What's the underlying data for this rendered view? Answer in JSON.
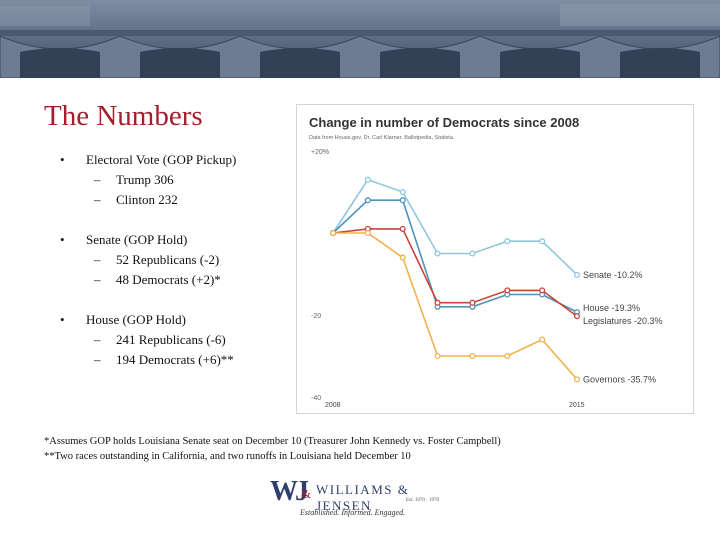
{
  "slide": {
    "title": "The Numbers",
    "bullets": [
      {
        "label": "Electoral Vote (GOP Pickup)",
        "subs": [
          "Trump 306",
          "Clinton 232"
        ]
      },
      {
        "label": "Senate (GOP Hold)",
        "subs": [
          "52 Republicans (-2)",
          "48 Democrats (+2)*"
        ]
      },
      {
        "label": "House (GOP Hold)",
        "subs": [
          "241 Republicans (-6)",
          "194 Democrats (+6)**"
        ]
      }
    ],
    "footnotes": [
      "*Assumes GOP holds Louisiana Senate seat on December 10 (Treasurer John Kennedy vs. Foster Campbell)",
      "**Two races outstanding in California, and two runoffs in Louisiana held December 10"
    ],
    "logo": {
      "mark": "WJ",
      "amp": "&",
      "name": "WILLIAMS & JENSEN",
      "established": "Est. 1970 · 1970",
      "tagline": "Established. Informed. Engaged."
    }
  },
  "chart_data": {
    "type": "line",
    "title": "Change in number of Democrats since 2008",
    "subtitle": "Data from House.gov, Dr. Carl Klarner, Ballotpedia, Statista.",
    "x": [
      2008,
      2009,
      2010,
      2011,
      2012,
      2013,
      2014,
      2015
    ],
    "x_tick_labels": [
      "2008",
      "2015"
    ],
    "y_tick_labels": [
      "+20%",
      "-20",
      "-40"
    ],
    "ylim": [
      -40,
      20
    ],
    "grid": false,
    "series": [
      {
        "name": "Senate -10.2%",
        "color": "#8fc7dc",
        "values": [
          0,
          13,
          10,
          -5,
          -5,
          -2,
          -2,
          -10.2
        ]
      },
      {
        "name": "House -19.3%",
        "color": "#4e93b9",
        "values": [
          0,
          8,
          8,
          -18,
          -18,
          -15,
          -15,
          -19.3
        ]
      },
      {
        "name": "Legislatures -20.3%",
        "color": "#c9433a",
        "values": [
          0,
          1,
          1,
          -17,
          -17,
          -14,
          -14,
          -20.3
        ]
      },
      {
        "name": "Governors -35.7%",
        "color": "#f2b24b",
        "values": [
          0,
          0,
          -6,
          -30,
          -30,
          -30,
          -26,
          -35.7
        ]
      }
    ]
  },
  "colors": {
    "title": "#a31f2e",
    "logo": "#2f3f6b"
  }
}
